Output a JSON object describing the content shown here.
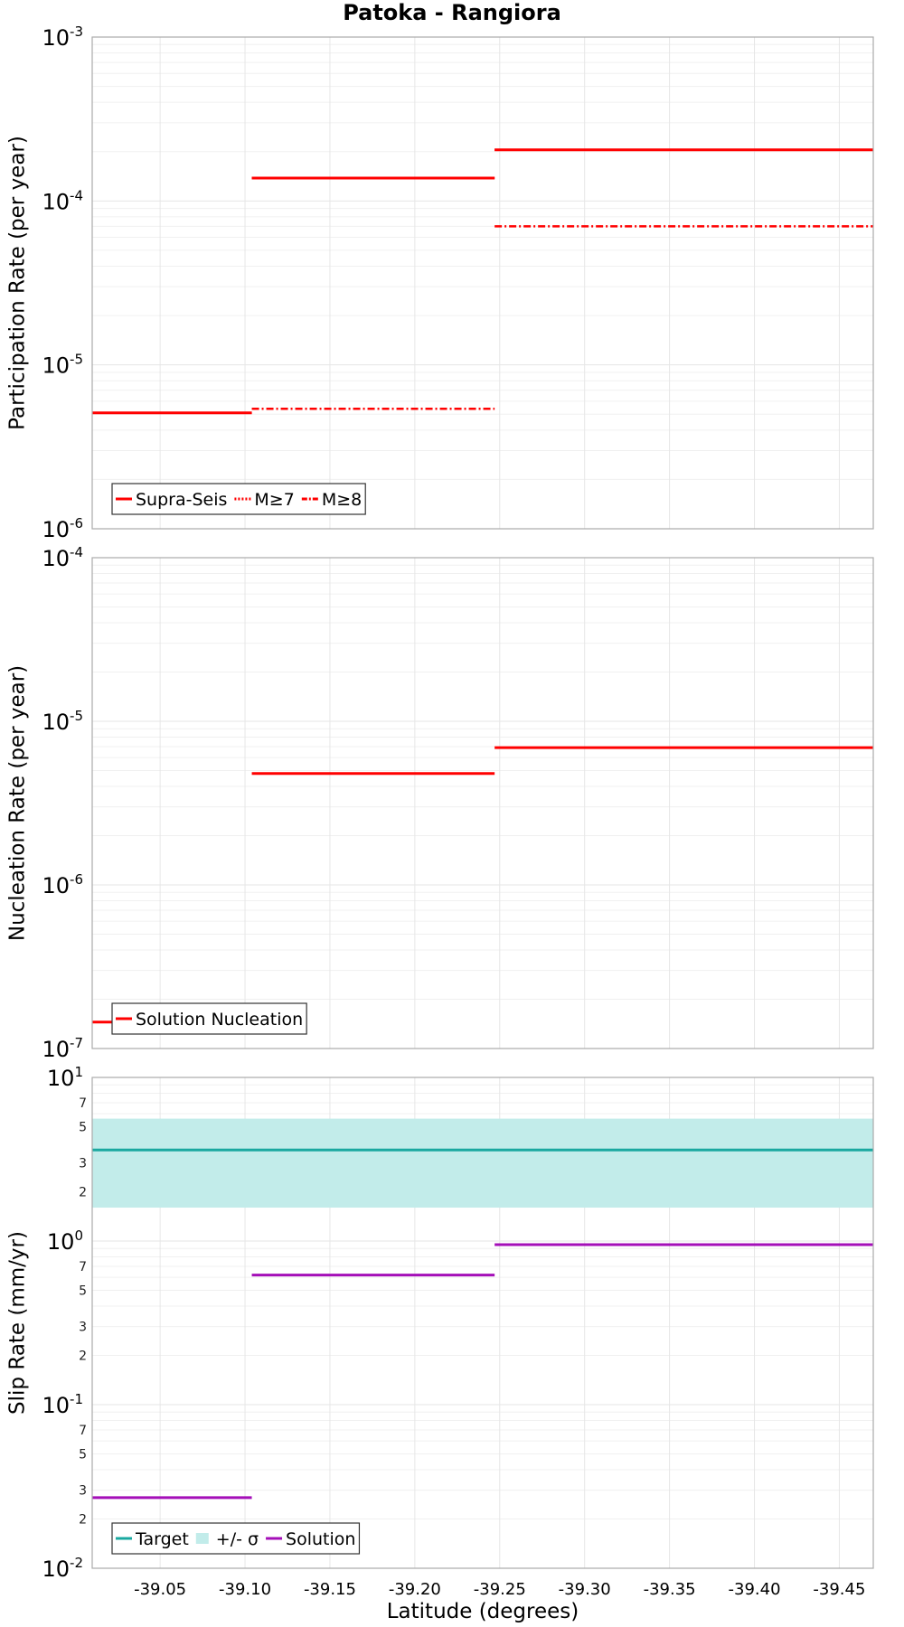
{
  "chart_data": {
    "title": "Patoka - Rangiora",
    "xlabel": "Latitude (degrees)",
    "xlim": [
      -39.01,
      -39.47
    ],
    "x_ticks": [
      {
        "value": -39.05,
        "label": "-39.05"
      },
      {
        "value": -39.1,
        "label": "-39.10"
      },
      {
        "value": -39.15,
        "label": "-39.15"
      },
      {
        "value": -39.2,
        "label": "-39.20"
      },
      {
        "value": -39.25,
        "label": "-39.25"
      },
      {
        "value": -39.3,
        "label": "-39.30"
      },
      {
        "value": -39.35,
        "label": "-39.35"
      },
      {
        "value": -39.4,
        "label": "-39.40"
      },
      {
        "value": -39.45,
        "label": "-39.45"
      }
    ],
    "panels": [
      {
        "type": "line",
        "ylabel": "Participation Rate (per year)",
        "yscale": "log",
        "ylim": [
          1e-06,
          0.001
        ],
        "decade_labels": [
          {
            "base": "10",
            "exp": "-6",
            "value": 1e-06
          },
          {
            "base": "10",
            "exp": "-5",
            "value": 1e-05
          },
          {
            "base": "10",
            "exp": "-4",
            "value": 0.0001
          },
          {
            "base": "10",
            "exp": "-3",
            "value": 0.001
          }
        ],
        "minor_labels": [],
        "bands": [],
        "series": [
          {
            "name": "Supra-Seis",
            "color": "#ff0000",
            "dash": "solid",
            "segments": [
              {
                "x": [
                  -39.01,
                  -39.104
                ],
                "y": 5.1e-06
              },
              {
                "x": [
                  -39.104,
                  -39.247
                ],
                "y": 0.000138
              },
              {
                "x": [
                  -39.247,
                  -39.47
                ],
                "y": 0.000205
              }
            ]
          },
          {
            "name": "M≥7",
            "color": "#ff0000",
            "dash": "dotted",
            "segments": [
              {
                "x": [
                  -39.01,
                  -39.104
                ],
                "y": 5.1e-06
              },
              {
                "x": [
                  -39.104,
                  -39.247
                ],
                "y": 0.000138
              },
              {
                "x": [
                  -39.247,
                  -39.47
                ],
                "y": 0.000205
              }
            ]
          },
          {
            "name": "M≥8",
            "color": "#ff0000",
            "dash": "dashdot",
            "segments": [
              {
                "x": [
                  -39.104,
                  -39.247
                ],
                "y": 5.4e-06
              },
              {
                "x": [
                  -39.247,
                  -39.47
                ],
                "y": 7e-05
              }
            ]
          }
        ],
        "legend": {
          "position": "bottom-left",
          "entries": [
            {
              "label": "Supra-Seis",
              "color": "#ff0000",
              "kind": "solid"
            },
            {
              "label": "M≥7",
              "color": "#ff0000",
              "kind": "dotted"
            },
            {
              "label": "M≥8",
              "color": "#ff0000",
              "kind": "dashdot"
            }
          ]
        }
      },
      {
        "type": "line",
        "ylabel": "Nucleation Rate (per year)",
        "yscale": "log",
        "ylim": [
          1e-07,
          0.0001
        ],
        "decade_labels": [
          {
            "base": "10",
            "exp": "-7",
            "value": 1e-07
          },
          {
            "base": "10",
            "exp": "-6",
            "value": 1e-06
          },
          {
            "base": "10",
            "exp": "-5",
            "value": 1e-05
          },
          {
            "base": "10",
            "exp": "-4",
            "value": 0.0001
          }
        ],
        "minor_labels": [],
        "bands": [],
        "series": [
          {
            "name": "Solution Nucleation",
            "color": "#ff0000",
            "dash": "solid",
            "segments": [
              {
                "x": [
                  -39.01,
                  -39.104
                ],
                "y": 1.45e-07
              },
              {
                "x": [
                  -39.104,
                  -39.247
                ],
                "y": 4.8e-06
              },
              {
                "x": [
                  -39.247,
                  -39.47
                ],
                "y": 6.9e-06
              }
            ]
          }
        ],
        "legend": {
          "position": "bottom-left",
          "entries": [
            {
              "label": "Solution Nucleation",
              "color": "#ff0000",
              "kind": "solid"
            }
          ]
        }
      },
      {
        "type": "line",
        "ylabel": "Slip Rate (mm/yr)",
        "yscale": "log",
        "ylim": [
          0.01,
          10
        ],
        "decade_labels": [
          {
            "base": "10",
            "exp": "-2",
            "value": 0.01
          },
          {
            "base": "10",
            "exp": "-1",
            "value": 0.1
          },
          {
            "base": "10",
            "exp": "0",
            "value": 1
          },
          {
            "base": "10",
            "exp": "1",
            "value": 10
          }
        ],
        "minor_labels": [
          {
            "label": "2",
            "value": 0.02
          },
          {
            "label": "3",
            "value": 0.03
          },
          {
            "label": "5",
            "value": 0.05
          },
          {
            "label": "7",
            "value": 0.07
          },
          {
            "label": "2",
            "value": 0.2
          },
          {
            "label": "3",
            "value": 0.3
          },
          {
            "label": "5",
            "value": 0.5
          },
          {
            "label": "7",
            "value": 0.7
          },
          {
            "label": "2",
            "value": 2
          },
          {
            "label": "3",
            "value": 3
          },
          {
            "label": "5",
            "value": 5
          },
          {
            "label": "7",
            "value": 7
          }
        ],
        "bands": [
          {
            "name": "+/- σ",
            "color": "#c2ecea",
            "x": [
              -39.01,
              -39.47
            ],
            "y": [
              1.6,
              5.6
            ]
          }
        ],
        "series": [
          {
            "name": "Target",
            "color": "#1aa8a0",
            "dash": "solid",
            "segments": [
              {
                "x": [
                  -39.01,
                  -39.47
                ],
                "y": 3.6
              }
            ]
          },
          {
            "name": "Solution",
            "color": "#a40fb8",
            "dash": "solid",
            "segments": [
              {
                "x": [
                  -39.01,
                  -39.104
                ],
                "y": 0.027
              },
              {
                "x": [
                  -39.104,
                  -39.247
                ],
                "y": 0.62
              },
              {
                "x": [
                  -39.247,
                  -39.47
                ],
                "y": 0.95
              }
            ]
          }
        ],
        "legend": {
          "position": "bottom-left",
          "entries": [
            {
              "label": "Target",
              "color": "#1aa8a0",
              "kind": "solid"
            },
            {
              "label": "+/- σ",
              "color": "#c2ecea",
              "kind": "band"
            },
            {
              "label": "Solution",
              "color": "#a40fb8",
              "kind": "solid"
            }
          ]
        }
      }
    ]
  }
}
